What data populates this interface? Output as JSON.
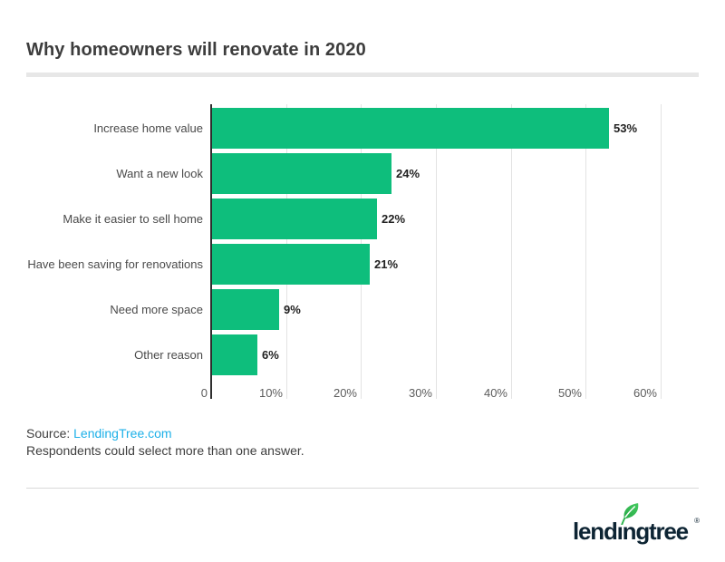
{
  "header": {
    "title": "Why homeowners will renovate in 2020"
  },
  "chart_data": {
    "type": "bar",
    "orientation": "horizontal",
    "title": "Why homeowners will renovate in 2020",
    "categories": [
      "Increase home value",
      "Want a new look",
      "Make it easier to sell home",
      "Have been saving for renovations",
      "Need more space",
      "Other reason"
    ],
    "values": [
      53,
      24,
      22,
      21,
      9,
      6
    ],
    "value_labels": [
      "53%",
      "24%",
      "22%",
      "21%",
      "9%",
      "6%"
    ],
    "x_ticks": [
      0,
      10,
      20,
      30,
      40,
      50,
      60
    ],
    "x_tick_labels": [
      "0",
      "10%",
      "20%",
      "30%",
      "40%",
      "50%",
      "60%"
    ],
    "xlim": [
      0,
      60
    ],
    "xlabel": "",
    "ylabel": "",
    "grid": true,
    "legend": "none",
    "bar_color": "#0ebe7c",
    "axis_color": "#2e2e2e",
    "gridline_color": "#e3e3e3"
  },
  "source": {
    "label": "Source:",
    "link_text": "LendingTree.com",
    "note": "Respondents could select more than one answer.",
    "link_color": "#1db0e8"
  },
  "logo": {
    "brand": "lendingtree",
    "registered": "®",
    "navy": "#0d2433",
    "leaf_green": "#2fb44e"
  }
}
